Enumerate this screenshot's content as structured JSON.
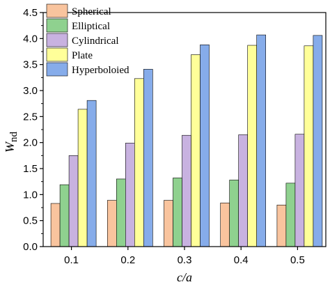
{
  "chart_data": {
    "type": "bar",
    "xlabel": "c/a",
    "ylabel_main": "W",
    "ylabel_sub": "nd",
    "categories": [
      "0.1",
      "0.2",
      "0.3",
      "0.4",
      "0.5"
    ],
    "ylim": [
      0,
      4.5
    ],
    "yticks": [
      "0.0",
      "0.5",
      "1.0",
      "1.5",
      "2.0",
      "2.5",
      "3.0",
      "3.5",
      "4.0",
      "4.5"
    ],
    "legend_position": "top-left",
    "grid": false,
    "series": [
      {
        "name": "Spherical",
        "color": "#f9c49e",
        "values": [
          0.83,
          0.89,
          0.89,
          0.84,
          0.8
        ]
      },
      {
        "name": "Elliptical",
        "color": "#8fd18f",
        "values": [
          1.19,
          1.3,
          1.32,
          1.28,
          1.22
        ]
      },
      {
        "name": "Cylindrical",
        "color": "#c8b2e0",
        "values": [
          1.75,
          1.99,
          2.14,
          2.15,
          2.16
        ]
      },
      {
        "name": "Plate",
        "color": "#ffff99",
        "values": [
          2.64,
          3.23,
          3.69,
          3.87,
          3.86
        ]
      },
      {
        "name": "Hyperboloied",
        "color": "#86acea",
        "values": [
          2.81,
          3.41,
          3.88,
          4.07,
          4.06
        ]
      }
    ]
  }
}
